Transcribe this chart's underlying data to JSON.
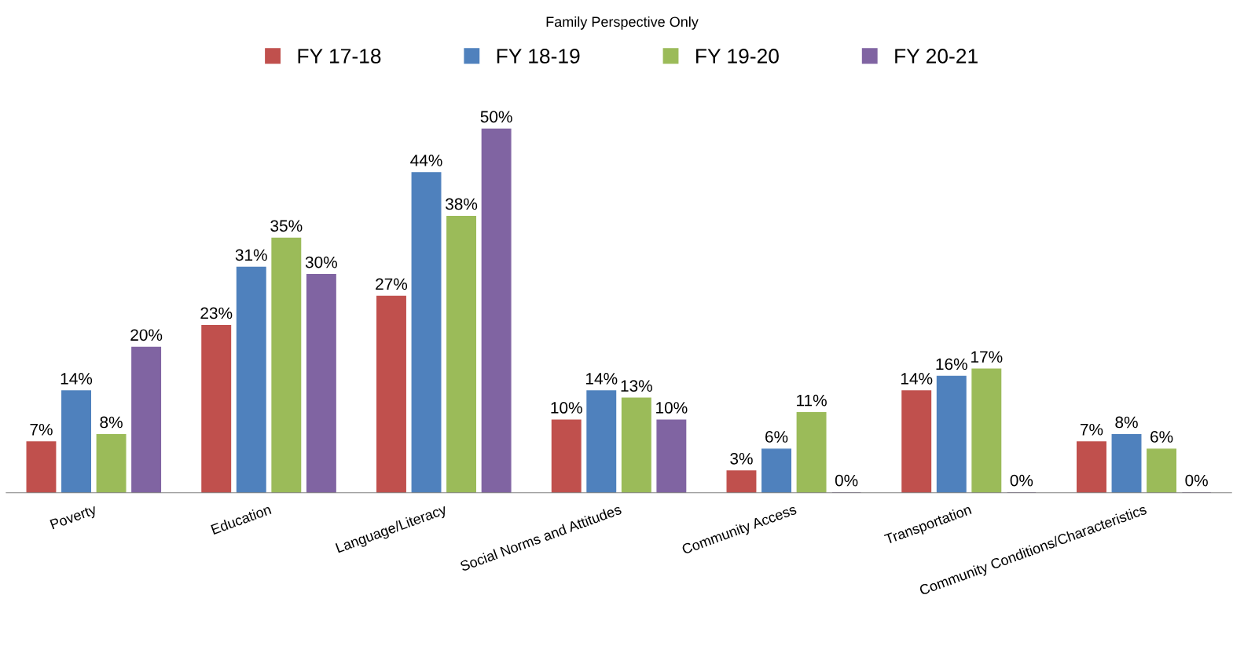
{
  "chart_data": {
    "type": "bar",
    "title": "Family Perspective Only",
    "categories": [
      "Poverty",
      "Education",
      "Language/Literacy",
      "Social Norms and Attitudes",
      "Community Access",
      "Transportation",
      "Community Conditions/Characteristics"
    ],
    "series": [
      {
        "name": "FY 17-18",
        "color": "#c0504d",
        "values": [
          7,
          23,
          27,
          10,
          3,
          14,
          7
        ],
        "value_labels": [
          "7%",
          "23%",
          "27%",
          "10%",
          "3%",
          "14%",
          "7%"
        ]
      },
      {
        "name": "FY 18-19",
        "color": "#4f81bd",
        "values": [
          14,
          31,
          44,
          14,
          6,
          16,
          8
        ],
        "value_labels": [
          "14%",
          "31%",
          "44%",
          "14%",
          "6%",
          "16%",
          "8%"
        ]
      },
      {
        "name": "FY 19-20",
        "color": "#9bbb59",
        "values": [
          8,
          35,
          38,
          13,
          11,
          17,
          6
        ],
        "value_labels": [
          "8%",
          "35%",
          "38%",
          "13%",
          "11%",
          "17%",
          "6%"
        ]
      },
      {
        "name": "FY 20-21",
        "color": "#8064a2",
        "values": [
          20,
          30,
          50,
          10,
          0,
          0,
          0
        ],
        "value_labels": [
          "20%",
          "30%",
          "50%",
          "10%",
          "0%",
          "0%",
          "0%"
        ]
      }
    ],
    "legend": "top",
    "grid": false
  }
}
